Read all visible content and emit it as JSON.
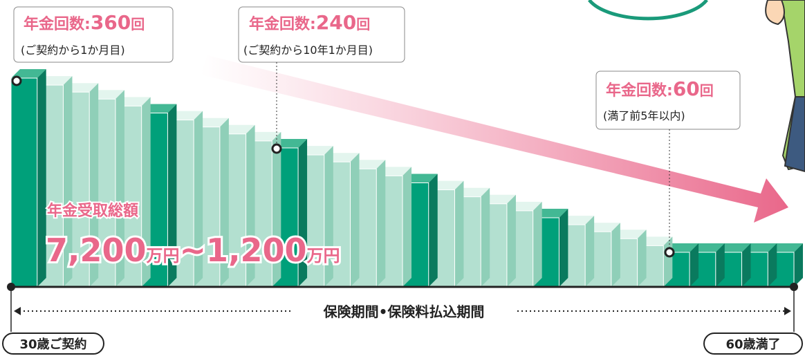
{
  "callouts": [
    {
      "label": "年金回数:",
      "count": "360",
      "unit": "回",
      "note": "(ご契約から1か月目)"
    },
    {
      "label": "年金回数:",
      "count": "240",
      "unit": "回",
      "note": "(ご契約から10年1か月目)"
    },
    {
      "label": "年金回数:",
      "count": "60",
      "unit": "回",
      "note": "(満了前5年以内)"
    }
  ],
  "total": {
    "label": "年金受取総額",
    "from": "7,200",
    "from_unit": "万円",
    "to": "~1,200",
    "to_unit": "万円"
  },
  "period": "保険期間•保険料払込期間",
  "start": "30歳ご契約",
  "end": "60歳満了"
}
